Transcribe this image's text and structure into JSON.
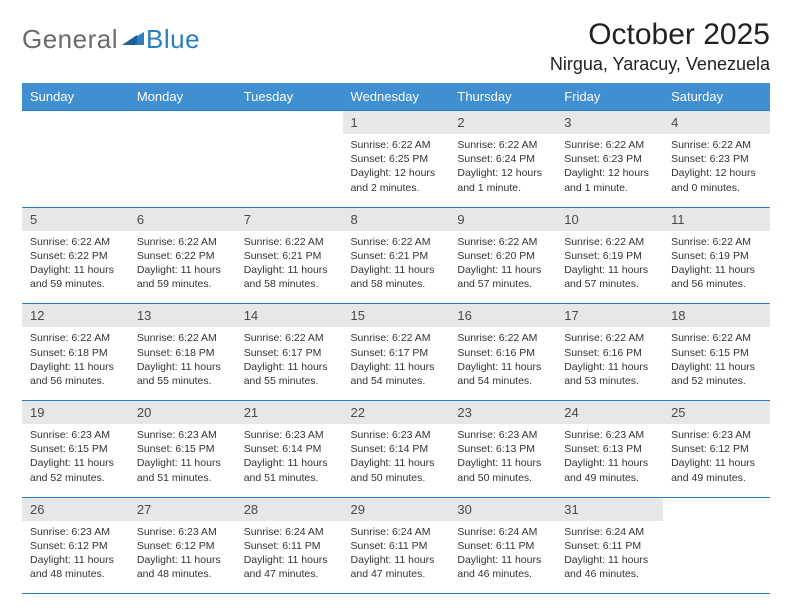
{
  "brand": {
    "part1": "General",
    "part2": "Blue"
  },
  "header": {
    "month_title": "October 2025",
    "location": "Nirgua, Yaracuy, Venezuela"
  },
  "colors": {
    "header_bg": "#3f8fd1",
    "header_fg": "#ffffff",
    "daynum_bg": "#e7e7e7",
    "border": "#2a7fc4",
    "logo_gray": "#6b6b6b",
    "logo_blue": "#2a7fc4",
    "page_bg": "#ffffff"
  },
  "day_names": [
    "Sunday",
    "Monday",
    "Tuesday",
    "Wednesday",
    "Thursday",
    "Friday",
    "Saturday"
  ],
  "weeks": [
    [
      null,
      null,
      null,
      {
        "n": "1",
        "sr": "6:22 AM",
        "ss": "6:25 PM",
        "dl": "12 hours and 2 minutes."
      },
      {
        "n": "2",
        "sr": "6:22 AM",
        "ss": "6:24 PM",
        "dl": "12 hours and 1 minute."
      },
      {
        "n": "3",
        "sr": "6:22 AM",
        "ss": "6:23 PM",
        "dl": "12 hours and 1 minute."
      },
      {
        "n": "4",
        "sr": "6:22 AM",
        "ss": "6:23 PM",
        "dl": "12 hours and 0 minutes."
      }
    ],
    [
      {
        "n": "5",
        "sr": "6:22 AM",
        "ss": "6:22 PM",
        "dl": "11 hours and 59 minutes."
      },
      {
        "n": "6",
        "sr": "6:22 AM",
        "ss": "6:22 PM",
        "dl": "11 hours and 59 minutes."
      },
      {
        "n": "7",
        "sr": "6:22 AM",
        "ss": "6:21 PM",
        "dl": "11 hours and 58 minutes."
      },
      {
        "n": "8",
        "sr": "6:22 AM",
        "ss": "6:21 PM",
        "dl": "11 hours and 58 minutes."
      },
      {
        "n": "9",
        "sr": "6:22 AM",
        "ss": "6:20 PM",
        "dl": "11 hours and 57 minutes."
      },
      {
        "n": "10",
        "sr": "6:22 AM",
        "ss": "6:19 PM",
        "dl": "11 hours and 57 minutes."
      },
      {
        "n": "11",
        "sr": "6:22 AM",
        "ss": "6:19 PM",
        "dl": "11 hours and 56 minutes."
      }
    ],
    [
      {
        "n": "12",
        "sr": "6:22 AM",
        "ss": "6:18 PM",
        "dl": "11 hours and 56 minutes."
      },
      {
        "n": "13",
        "sr": "6:22 AM",
        "ss": "6:18 PM",
        "dl": "11 hours and 55 minutes."
      },
      {
        "n": "14",
        "sr": "6:22 AM",
        "ss": "6:17 PM",
        "dl": "11 hours and 55 minutes."
      },
      {
        "n": "15",
        "sr": "6:22 AM",
        "ss": "6:17 PM",
        "dl": "11 hours and 54 minutes."
      },
      {
        "n": "16",
        "sr": "6:22 AM",
        "ss": "6:16 PM",
        "dl": "11 hours and 54 minutes."
      },
      {
        "n": "17",
        "sr": "6:22 AM",
        "ss": "6:16 PM",
        "dl": "11 hours and 53 minutes."
      },
      {
        "n": "18",
        "sr": "6:22 AM",
        "ss": "6:15 PM",
        "dl": "11 hours and 52 minutes."
      }
    ],
    [
      {
        "n": "19",
        "sr": "6:23 AM",
        "ss": "6:15 PM",
        "dl": "11 hours and 52 minutes."
      },
      {
        "n": "20",
        "sr": "6:23 AM",
        "ss": "6:15 PM",
        "dl": "11 hours and 51 minutes."
      },
      {
        "n": "21",
        "sr": "6:23 AM",
        "ss": "6:14 PM",
        "dl": "11 hours and 51 minutes."
      },
      {
        "n": "22",
        "sr": "6:23 AM",
        "ss": "6:14 PM",
        "dl": "11 hours and 50 minutes."
      },
      {
        "n": "23",
        "sr": "6:23 AM",
        "ss": "6:13 PM",
        "dl": "11 hours and 50 minutes."
      },
      {
        "n": "24",
        "sr": "6:23 AM",
        "ss": "6:13 PM",
        "dl": "11 hours and 49 minutes."
      },
      {
        "n": "25",
        "sr": "6:23 AM",
        "ss": "6:12 PM",
        "dl": "11 hours and 49 minutes."
      }
    ],
    [
      {
        "n": "26",
        "sr": "6:23 AM",
        "ss": "6:12 PM",
        "dl": "11 hours and 48 minutes."
      },
      {
        "n": "27",
        "sr": "6:23 AM",
        "ss": "6:12 PM",
        "dl": "11 hours and 48 minutes."
      },
      {
        "n": "28",
        "sr": "6:24 AM",
        "ss": "6:11 PM",
        "dl": "11 hours and 47 minutes."
      },
      {
        "n": "29",
        "sr": "6:24 AM",
        "ss": "6:11 PM",
        "dl": "11 hours and 47 minutes."
      },
      {
        "n": "30",
        "sr": "6:24 AM",
        "ss": "6:11 PM",
        "dl": "11 hours and 46 minutes."
      },
      {
        "n": "31",
        "sr": "6:24 AM",
        "ss": "6:11 PM",
        "dl": "11 hours and 46 minutes."
      },
      null
    ]
  ],
  "labels": {
    "sunrise": "Sunrise:",
    "sunset": "Sunset:",
    "daylight": "Daylight:"
  }
}
